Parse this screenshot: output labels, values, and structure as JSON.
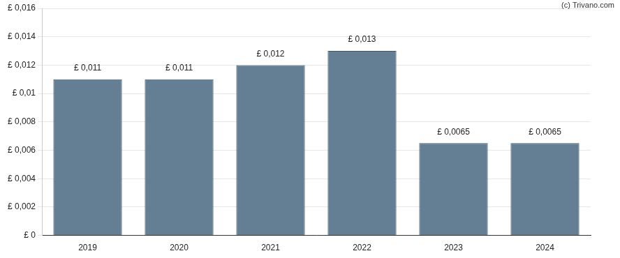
{
  "chart_data": {
    "type": "bar",
    "annotations": [
      "(c) Trivano.com"
    ],
    "categories": [
      "2019",
      "2020",
      "2021",
      "2022",
      "2023",
      "2024"
    ],
    "values": [
      0.011,
      0.011,
      0.012,
      0.013,
      0.0065,
      0.0065
    ],
    "value_labels": [
      "£ 0,011",
      "£ 0,011",
      "£ 0,012",
      "£ 0,013",
      "£ 0,0065",
      "£ 0,0065"
    ],
    "data_labels": true,
    "color": "#647f94",
    "ylim": [
      0,
      0.016
    ],
    "yticks": [
      {
        "value": 0,
        "label": "£ 0"
      },
      {
        "value": 0.002,
        "label": "£ 0,002"
      },
      {
        "value": 0.004,
        "label": "£ 0,004"
      },
      {
        "value": 0.006,
        "label": "£ 0,006"
      },
      {
        "value": 0.008,
        "label": "£ 0,008"
      },
      {
        "value": 0.01,
        "label": "£ 0,01"
      },
      {
        "value": 0.012,
        "label": "£ 0,012"
      },
      {
        "value": 0.014,
        "label": "£ 0,014"
      },
      {
        "value": 0.016,
        "label": "£ 0,016"
      }
    ],
    "grid": true
  }
}
